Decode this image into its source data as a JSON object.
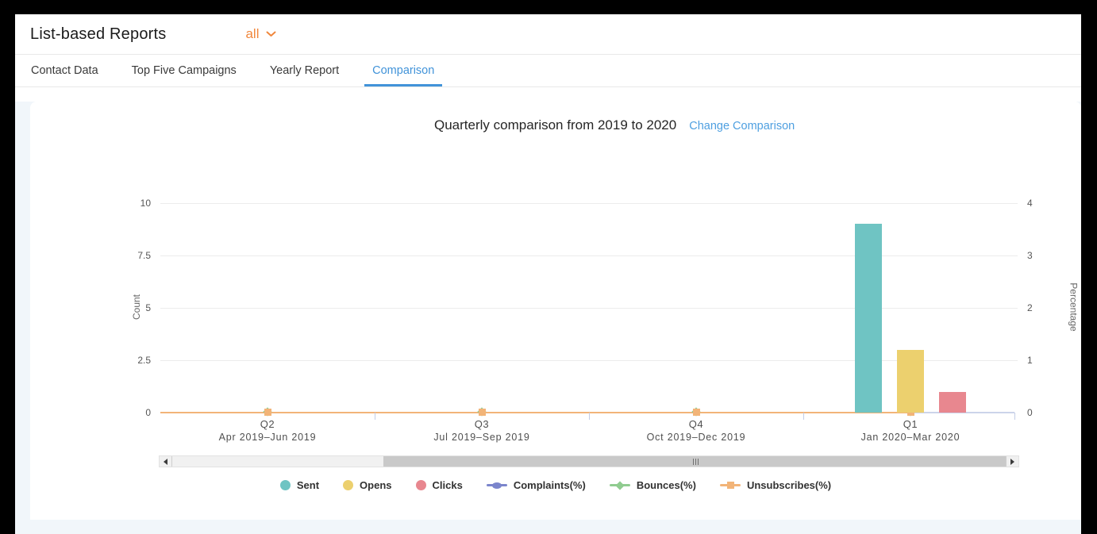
{
  "theme": {
    "accent_orange": "#f0873c",
    "active_tab_blue": "#4193d9",
    "link_blue": "#4e9fe0",
    "page_background": "#f1f6fa"
  },
  "header": {
    "title": "List-based Reports",
    "list_filter": "all"
  },
  "tabs": [
    {
      "label": "Contact Data"
    },
    {
      "label": "Top Five Campaigns"
    },
    {
      "label": "Yearly Report"
    },
    {
      "label": "Comparison"
    }
  ],
  "active_tab": "Comparison",
  "chart_header": {
    "title": "Quarterly comparison from 2019 to 2020",
    "change_link": "Change Comparison"
  },
  "chart_data": {
    "type": "bar",
    "categories": [
      "Q2",
      "Q3",
      "Q4",
      "Q1"
    ],
    "category_ranges": [
      "Apr 2019–Jun 2019",
      "Jul 2019–Sep 2019",
      "Oct 2019–Dec 2019",
      "Jan 2020–Mar 2020"
    ],
    "series": [
      {
        "name": "Sent",
        "type": "bar",
        "axis": "left",
        "marker": "circle",
        "color": "#6fc4c3",
        "values": [
          0,
          0,
          0,
          9
        ]
      },
      {
        "name": "Opens",
        "type": "bar",
        "axis": "left",
        "marker": "circle",
        "color": "#ecd06e",
        "values": [
          0,
          0,
          0,
          3
        ]
      },
      {
        "name": "Clicks",
        "type": "bar",
        "axis": "left",
        "marker": "circle",
        "color": "#e8878f",
        "values": [
          0,
          0,
          0,
          1
        ]
      },
      {
        "name": "Complaints(%)",
        "type": "line",
        "axis": "right",
        "marker": "ellipse",
        "color": "#7b85cc",
        "values": [
          0,
          0,
          0,
          0
        ]
      },
      {
        "name": "Bounces(%)",
        "type": "line",
        "axis": "right",
        "marker": "diamond",
        "color": "#90cc90",
        "values": [
          0,
          0,
          0,
          0
        ]
      },
      {
        "name": "Unsubscribes(%)",
        "type": "line",
        "axis": "right",
        "marker": "square",
        "color": "#f2b478",
        "values": [
          0,
          0,
          0,
          0
        ]
      }
    ],
    "left_axis": {
      "label": "Count",
      "ticks": [
        0,
        2.5,
        5,
        7.5,
        10
      ],
      "range": [
        0,
        10
      ]
    },
    "right_axis": {
      "label": "Percentage",
      "ticks": [
        0,
        1,
        2,
        3,
        4
      ],
      "range": [
        0,
        4
      ]
    },
    "grid": true,
    "legend_position": "bottom"
  }
}
